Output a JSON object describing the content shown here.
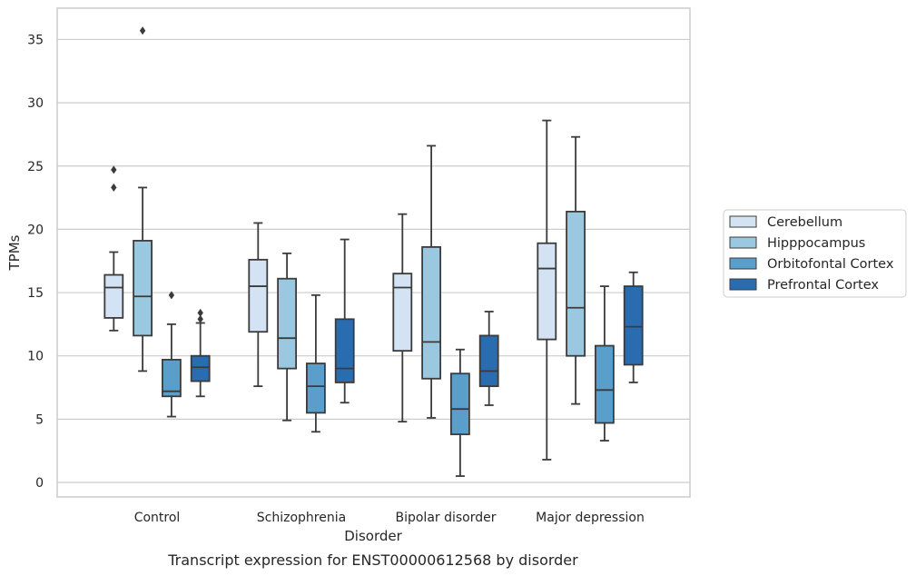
{
  "chart_data": {
    "type": "boxplot",
    "title": "",
    "caption": "Transcript expression for ENST00000612568 by disorder",
    "xlabel": "Disorder",
    "ylabel": "TPMs",
    "ylim": [
      -1.2,
      37.5
    ],
    "yticks": [
      0,
      5,
      10,
      15,
      20,
      25,
      30,
      35
    ],
    "grid": "horizontal",
    "legend_position": "right",
    "categories": [
      "Control",
      "Schizophrenia",
      "Bipolar disorder",
      "Major depression"
    ],
    "series": [
      {
        "name": "Cerebellum",
        "color": "#d3e3f3",
        "boxes": [
          {
            "whislo": 12.0,
            "q1": 13.0,
            "med": 15.4,
            "q3": 16.4,
            "whishi": 18.2,
            "fliers": [
              23.3,
              24.7
            ]
          },
          {
            "whislo": 7.6,
            "q1": 11.9,
            "med": 15.5,
            "q3": 17.6,
            "whishi": 20.5,
            "fliers": []
          },
          {
            "whislo": 4.8,
            "q1": 10.4,
            "med": 15.4,
            "q3": 16.5,
            "whishi": 21.2,
            "fliers": []
          },
          {
            "whislo": 1.8,
            "q1": 11.3,
            "med": 16.9,
            "q3": 18.9,
            "whishi": 28.6,
            "fliers": []
          }
        ]
      },
      {
        "name": "Hipppocampus",
        "color": "#9ac8e0",
        "boxes": [
          {
            "whislo": 8.8,
            "q1": 11.6,
            "med": 14.7,
            "q3": 19.1,
            "whishi": 23.3,
            "fliers": [
              35.7
            ]
          },
          {
            "whislo": 4.9,
            "q1": 9.0,
            "med": 11.4,
            "q3": 16.1,
            "whishi": 18.1,
            "fliers": []
          },
          {
            "whislo": 5.1,
            "q1": 8.2,
            "med": 11.1,
            "q3": 18.6,
            "whishi": 26.6,
            "fliers": []
          },
          {
            "whislo": 6.2,
            "q1": 10.0,
            "med": 13.8,
            "q3": 21.4,
            "whishi": 27.3,
            "fliers": []
          }
        ]
      },
      {
        "name": "Orbitofontal Cortex",
        "color": "#5a9ecc",
        "boxes": [
          {
            "whislo": 5.2,
            "q1": 6.8,
            "med": 7.2,
            "q3": 9.7,
            "whishi": 12.5,
            "fliers": [
              14.8
            ]
          },
          {
            "whislo": 4.0,
            "q1": 5.5,
            "med": 7.6,
            "q3": 9.4,
            "whishi": 14.8,
            "fliers": []
          },
          {
            "whislo": 0.5,
            "q1": 3.8,
            "med": 5.8,
            "q3": 8.6,
            "whishi": 10.5,
            "fliers": []
          },
          {
            "whislo": 3.3,
            "q1": 4.7,
            "med": 7.3,
            "q3": 10.8,
            "whishi": 15.5,
            "fliers": []
          }
        ]
      },
      {
        "name": "Prefrontal Cortex",
        "color": "#2a6cb0",
        "boxes": [
          {
            "whislo": 6.8,
            "q1": 8.0,
            "med": 9.1,
            "q3": 10.0,
            "whishi": 12.6,
            "fliers": [
              12.9,
              13.4
            ]
          },
          {
            "whislo": 6.3,
            "q1": 7.9,
            "med": 9.0,
            "q3": 12.9,
            "whishi": 19.2,
            "fliers": []
          },
          {
            "whislo": 6.1,
            "q1": 7.6,
            "med": 8.8,
            "q3": 11.6,
            "whishi": 13.5,
            "fliers": []
          },
          {
            "whislo": 7.9,
            "q1": 9.3,
            "med": 12.3,
            "q3": 15.5,
            "whishi": 16.6,
            "fliers": []
          }
        ]
      }
    ]
  }
}
